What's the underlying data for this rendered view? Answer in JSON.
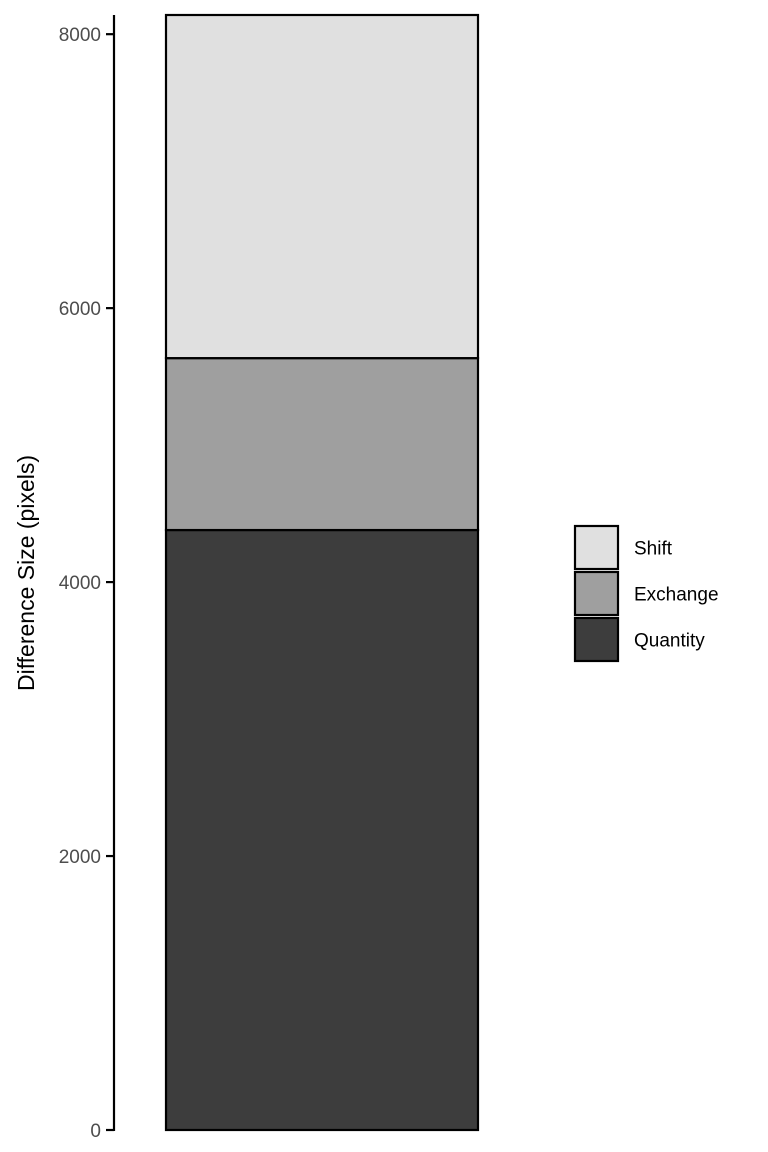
{
  "chart_data": {
    "type": "bar",
    "stacked": true,
    "categories": [
      ""
    ],
    "series": [
      {
        "name": "Quantity",
        "values": [
          4380
        ],
        "color": "#3d3d3d"
      },
      {
        "name": "Exchange",
        "values": [
          1255
        ],
        "color": "#9f9f9f"
      },
      {
        "name": "Shift",
        "values": [
          2505
        ],
        "color": "#e0e0e0"
      }
    ],
    "xlabel": "",
    "ylabel": "Difference Size (pixels)",
    "ylim": [
      0,
      8140
    ],
    "yticks": [
      0,
      2000,
      4000,
      6000,
      8000
    ],
    "ytick_labels": [
      "0",
      "2000",
      "4000",
      "6000",
      "8000"
    ],
    "legend": {
      "placement": "right",
      "order": [
        "Shift",
        "Exchange",
        "Quantity"
      ]
    },
    "grid": false
  }
}
